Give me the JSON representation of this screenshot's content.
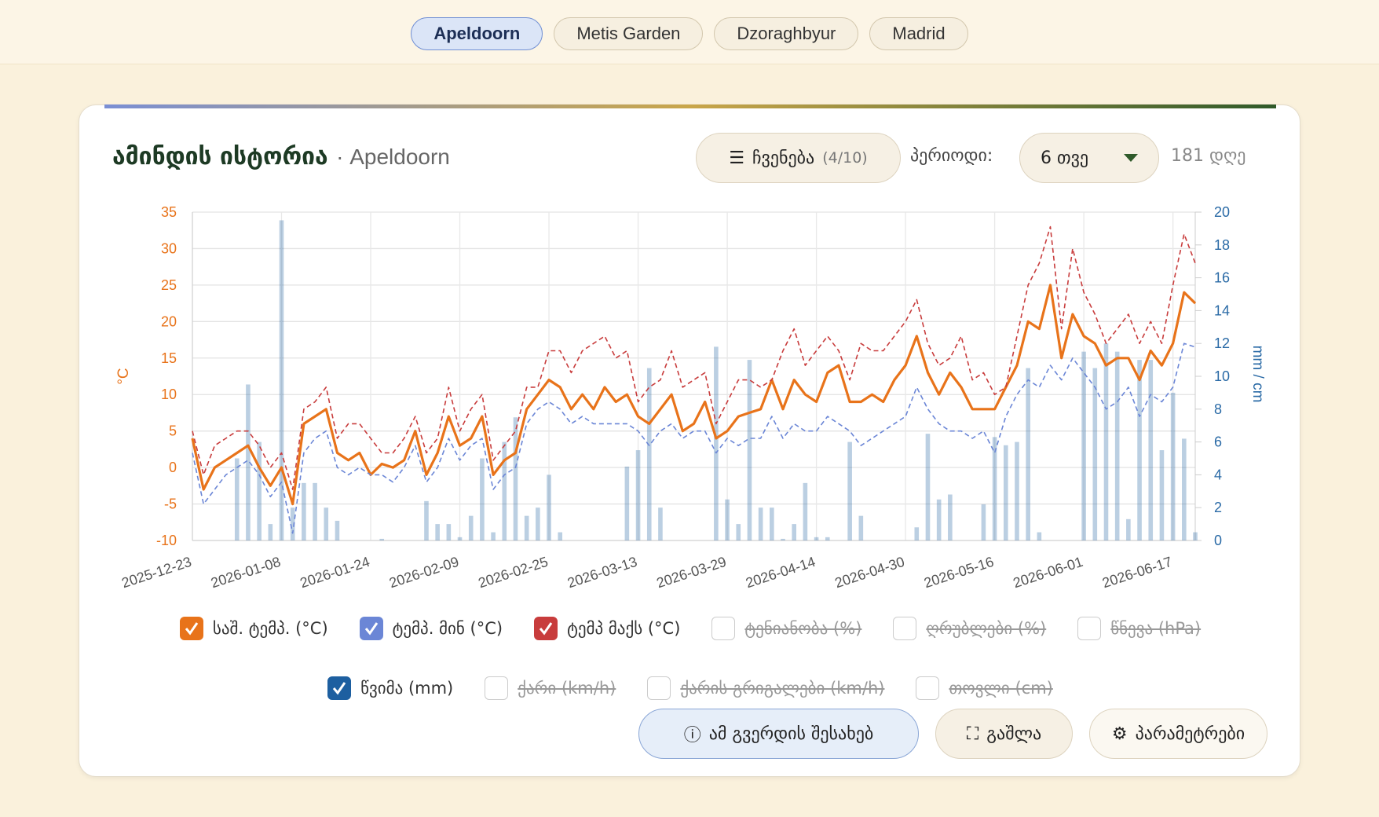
{
  "tabs": [
    "Apeldoorn",
    "Metis Garden",
    "Dzoraghbyur",
    "Madrid"
  ],
  "header": {
    "title": "ამინდის ისტორია",
    "subtitle": "· Apeldoorn"
  },
  "controls": {
    "show": "ჩვენება",
    "show_count": "(4/10)",
    "period_label": "პერიოდი:",
    "period": "6 თვე",
    "days": "181 დღე"
  },
  "buttons": [
    "ამ გვერდის შესახებ",
    "გაშლა",
    "პარამეტრები"
  ],
  "chart_data": {
    "type": "line",
    "ylabel": "°C",
    "y2label": "mm / cm",
    "grid": true,
    "ylim": [
      -10,
      35
    ],
    "yticks": [
      -10,
      -5,
      0,
      5,
      10,
      15,
      20,
      25,
      30,
      35
    ],
    "y2lim": [
      0,
      20
    ],
    "y2ticks": [
      0,
      2,
      4,
      6,
      8,
      10,
      12,
      14,
      16,
      18,
      20
    ],
    "xlim": [
      "2025-12-23",
      "2026-06-21"
    ],
    "xticks": [
      "2025-12-23",
      "2026-01-08",
      "2026-01-24",
      "2026-02-09",
      "2026-02-25",
      "2026-03-13",
      "2026-03-29",
      "2026-04-14",
      "2026-04-30",
      "2026-05-16",
      "2026-06-01",
      "2026-06-17"
    ],
    "x": [
      "2025-12-23",
      "2025-12-25",
      "2025-12-27",
      "2025-12-29",
      "2025-12-31",
      "2026-01-02",
      "2026-01-04",
      "2026-01-06",
      "2026-01-08",
      "2026-01-10",
      "2026-01-12",
      "2026-01-14",
      "2026-01-16",
      "2026-01-18",
      "2026-01-20",
      "2026-01-22",
      "2026-01-24",
      "2026-01-26",
      "2026-01-28",
      "2026-01-30",
      "2026-02-01",
      "2026-02-03",
      "2026-02-05",
      "2026-02-07",
      "2026-02-09",
      "2026-02-11",
      "2026-02-13",
      "2026-02-15",
      "2026-02-17",
      "2026-02-19",
      "2026-02-21",
      "2026-02-23",
      "2026-02-25",
      "2026-02-27",
      "2026-03-01",
      "2026-03-03",
      "2026-03-05",
      "2026-03-07",
      "2026-03-09",
      "2026-03-11",
      "2026-03-13",
      "2026-03-15",
      "2026-03-17",
      "2026-03-19",
      "2026-03-21",
      "2026-03-23",
      "2026-03-25",
      "2026-03-27",
      "2026-03-29",
      "2026-03-31",
      "2026-04-02",
      "2026-04-04",
      "2026-04-06",
      "2026-04-08",
      "2026-04-10",
      "2026-04-12",
      "2026-04-14",
      "2026-04-16",
      "2026-04-18",
      "2026-04-20",
      "2026-04-22",
      "2026-04-24",
      "2026-04-26",
      "2026-04-28",
      "2026-04-30",
      "2026-05-02",
      "2026-05-04",
      "2026-05-06",
      "2026-05-08",
      "2026-05-10",
      "2026-05-12",
      "2026-05-14",
      "2026-05-16",
      "2026-05-18",
      "2026-05-20",
      "2026-05-22",
      "2026-05-24",
      "2026-05-26",
      "2026-05-28",
      "2026-05-30",
      "2026-06-01",
      "2026-06-03",
      "2026-06-05",
      "2026-06-07",
      "2026-06-09",
      "2026-06-11",
      "2026-06-13",
      "2026-06-15",
      "2026-06-17",
      "2026-06-19",
      "2026-06-21"
    ],
    "series": [
      {
        "name": "საშ. ტემპ. (°C)",
        "color": "#e8731a",
        "line_style": "solid",
        "values": [
          4,
          -3,
          0,
          1,
          2,
          3,
          0,
          -2.5,
          0,
          -5,
          6,
          7,
          8,
          2,
          1,
          2,
          -1,
          0.5,
          0,
          1,
          5,
          -1,
          2,
          7,
          3,
          4,
          7,
          -1,
          1,
          2,
          8,
          10,
          12,
          11,
          8,
          10,
          8,
          11,
          9,
          10,
          7,
          6,
          8,
          10,
          5,
          6,
          9,
          4,
          5,
          7,
          7.5,
          8,
          12,
          8,
          12,
          10,
          9,
          13,
          14,
          9,
          9,
          10,
          9,
          12,
          14,
          18,
          13,
          10,
          13,
          11,
          8,
          8,
          8,
          11,
          14,
          20,
          19,
          25,
          15,
          21,
          18,
          17,
          14,
          15,
          15,
          12,
          16,
          14,
          17,
          24,
          22.5
        ]
      },
      {
        "name": "ტემპ. მინ (°C)",
        "color": "#6b86d6",
        "line_style": "dashed",
        "values": [
          2,
          -5,
          -3,
          -1,
          0,
          1,
          -1,
          -4,
          -2,
          -9,
          2,
          4,
          5,
          0,
          -1,
          0,
          -1,
          -1,
          -2,
          0,
          3,
          -2,
          0,
          4,
          1,
          3,
          4,
          -3,
          -1,
          0,
          6,
          8,
          9,
          8,
          6,
          7,
          6,
          6,
          6,
          6,
          5,
          3,
          5,
          6,
          4,
          5,
          5,
          2,
          4,
          3,
          4,
          4,
          7,
          4,
          6,
          5,
          5,
          7,
          6,
          5,
          3,
          4,
          5,
          6,
          7,
          11,
          8,
          6,
          5,
          5,
          4,
          5,
          2,
          7,
          10,
          12,
          11,
          14,
          12,
          15,
          13,
          11,
          8,
          9,
          11,
          7,
          10,
          9,
          11,
          17,
          16.5
        ]
      },
      {
        "name": "ტემპ მაქს (°C)",
        "color": "#c83c3c",
        "line_style": "dashed",
        "values": [
          5,
          -1,
          3,
          4,
          5,
          5,
          3,
          0,
          2,
          -3,
          8,
          9,
          11,
          4,
          6,
          6,
          4,
          2,
          2,
          4,
          7,
          2,
          4,
          11,
          5,
          8,
          10,
          1,
          3,
          5,
          11,
          11,
          16,
          16,
          13,
          16,
          17,
          18,
          15,
          16,
          9,
          11,
          12,
          16,
          11,
          12,
          13,
          6,
          9,
          12,
          12,
          11,
          12,
          16,
          19,
          14,
          16,
          18,
          16,
          12,
          17,
          16,
          16,
          18,
          20,
          23,
          17,
          14,
          15,
          18,
          12,
          13,
          10,
          11,
          18,
          25,
          28,
          33,
          19,
          30,
          24,
          21,
          17,
          19,
          21,
          17,
          20,
          17,
          25,
          32,
          28
        ]
      },
      {
        "name": "წვიმა (mm)",
        "color": "#1d5fa0",
        "type": "bar",
        "axis": "y2",
        "values": [
          0,
          0,
          0,
          0,
          5,
          9.5,
          6,
          1,
          19.5,
          2,
          3.5,
          3.5,
          2,
          1.2,
          0,
          0,
          0,
          0.1,
          0,
          0,
          0,
          2.4,
          1,
          1,
          0.2,
          1.5,
          5,
          0.5,
          6,
          7.5,
          1.5,
          2,
          4,
          0.5,
          0,
          0,
          0,
          0,
          0,
          4.5,
          5.5,
          10.5,
          2,
          0,
          0,
          0,
          0,
          11.8,
          2.5,
          1,
          11,
          2,
          2,
          0.1,
          1,
          3.5,
          0.2,
          0.2,
          0,
          6,
          1.5,
          0,
          0,
          0,
          0,
          0.8,
          6.5,
          2.5,
          2.8,
          0,
          0,
          2.2,
          6.3,
          5.8,
          6,
          10.5,
          0.5,
          0,
          0,
          0,
          11.5,
          10.5,
          12,
          11.5,
          1.3,
          11,
          11,
          5.5,
          9,
          6.2,
          0.5
        ]
      }
    ],
    "inactive_series": [
      "ტენიანობა (%)",
      "ღრუბლები (%)",
      "წნევა (hPa)",
      "ქარი (km/h)",
      "ქარის გრიგალები (km/h)",
      "თოვლი (cm)"
    ]
  }
}
